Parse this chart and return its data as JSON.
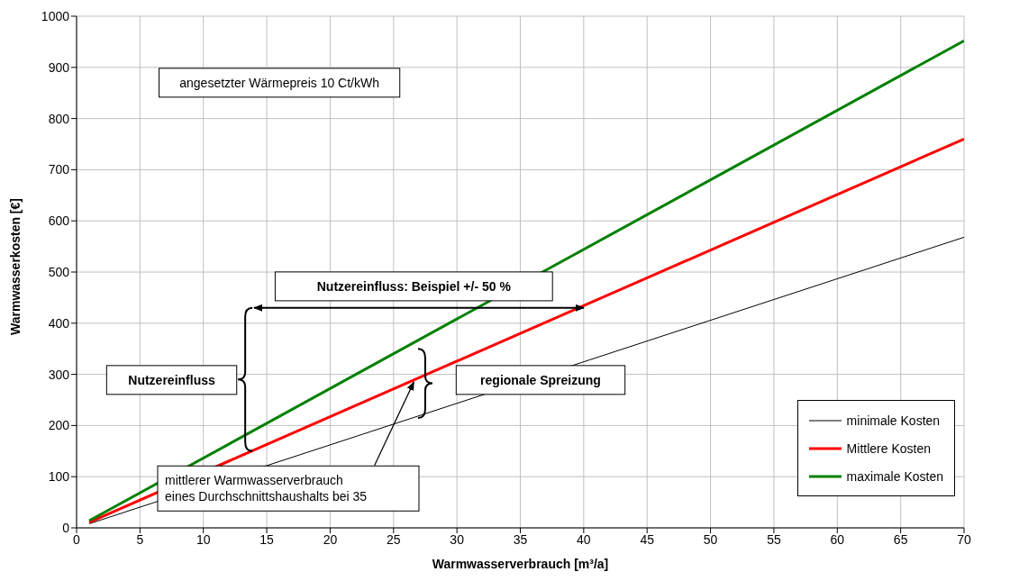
{
  "chart_data": {
    "type": "line",
    "xlabel": "Warmwasserverbrauch [m³/a]",
    "ylabel": "Warmwasserkosten [€]",
    "x": [
      1,
      70
    ],
    "series": [
      {
        "name": "minimale Kosten",
        "color": "#000000",
        "values": [
          8,
          568
        ]
      },
      {
        "name": "Mittlere Kosten",
        "color": "#ff0000",
        "values": [
          11,
          760
        ]
      },
      {
        "name": "maximale Kosten",
        "color": "#008000",
        "values": [
          14,
          952
        ]
      }
    ],
    "xlim": [
      0,
      70
    ],
    "xticks": [
      0,
      5,
      10,
      15,
      20,
      25,
      30,
      35,
      40,
      45,
      50,
      55,
      60,
      65,
      70
    ],
    "ylim": [
      0,
      1000
    ],
    "yticks": [
      0,
      100,
      200,
      300,
      400,
      500,
      600,
      700,
      800,
      900,
      1000
    ],
    "grid": true,
    "legend": "bottom right",
    "marker": "none",
    "line_style": "solid",
    "annotations": [
      "angesetzter Wärmepreis 10 Ct/kWh",
      "Nutzereinfluss: Beispiel +/- 50 %",
      "Nutzereinfluss",
      "regionale Spreizung",
      "mittlerer Warmwasserverbrauch\neines Durchschnittshaushalts bei 35"
    ]
  }
}
